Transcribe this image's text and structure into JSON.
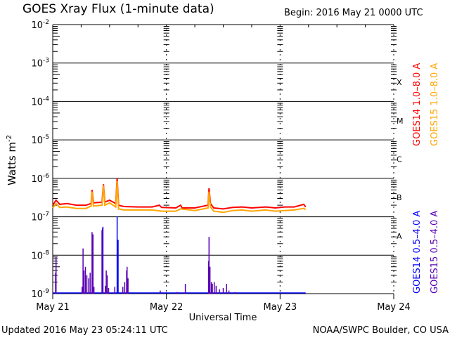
{
  "title": "GOES Xray Flux (1-minute data)",
  "begin": "Begin:  2016 May 21 0000 UTC",
  "updated": "Updated 2016 May 23 05:24:11 UTC",
  "credit": "NOAA/SWPC Boulder, CO USA",
  "chart_data": {
    "type": "line",
    "title": "GOES Xray Flux (1-minute data)",
    "xlabel": "Universal Time",
    "ylabel": "Watts m",
    "ylabel_sup": "-2",
    "yscale": "log",
    "ylim": [
      1e-09,
      0.01
    ],
    "xlim_hours": [
      0,
      72
    ],
    "x_ticks": [
      {
        "hour": 0,
        "label": "May 21"
      },
      {
        "hour": 24,
        "label": "May 22"
      },
      {
        "hour": 48,
        "label": "May 23"
      },
      {
        "hour": 72,
        "label": "May 24"
      }
    ],
    "y_ticks": [
      {
        "exp": -2,
        "label": "10",
        "sup": "-2"
      },
      {
        "exp": -3,
        "label": "10",
        "sup": "-3"
      },
      {
        "exp": -4,
        "label": "10",
        "sup": "-4"
      },
      {
        "exp": -5,
        "label": "10",
        "sup": "-5"
      },
      {
        "exp": -6,
        "label": "10",
        "sup": "-6"
      },
      {
        "exp": -7,
        "label": "10",
        "sup": "-7"
      },
      {
        "exp": -8,
        "label": "10",
        "sup": "-8"
      },
      {
        "exp": -9,
        "label": "10",
        "sup": "-9"
      }
    ],
    "flare_classes": [
      {
        "label": "X",
        "exp": -3.5
      },
      {
        "label": "M",
        "exp": -4.5
      },
      {
        "label": "C",
        "exp": -5.5
      },
      {
        "label": "B",
        "exp": -6.5
      },
      {
        "label": "A",
        "exp": -7.5
      }
    ],
    "grid": true,
    "legend_position": "right",
    "series": [
      {
        "name": "GOES14 1.0–8.0 A",
        "color": "#ff0000",
        "style": "line",
        "points": [
          [
            0,
            2e-07
          ],
          [
            0.7,
            2.7e-07
          ],
          [
            1.5,
            2.1e-07
          ],
          [
            3,
            2.2e-07
          ],
          [
            5,
            2e-07
          ],
          [
            7,
            2e-07
          ],
          [
            8.1,
            2.2e-07
          ],
          [
            8.3,
            5e-07
          ],
          [
            8.6,
            2.3e-07
          ],
          [
            10.4,
            2.4e-07
          ],
          [
            10.7,
            7e-07
          ],
          [
            11,
            2.4e-07
          ],
          [
            12,
            2.7e-07
          ],
          [
            13.3,
            2.2e-07
          ],
          [
            13.6,
            1e-06
          ],
          [
            13.9,
            2e-07
          ],
          [
            15,
            1.85e-07
          ],
          [
            18,
            1.8e-07
          ],
          [
            21,
            1.8e-07
          ],
          [
            22.5,
            2e-07
          ],
          [
            23,
            1.75e-07
          ],
          [
            26,
            1.7e-07
          ],
          [
            27,
            2e-07
          ],
          [
            27.3,
            1.7e-07
          ],
          [
            30,
            1.7e-07
          ],
          [
            32.8,
            2e-07
          ],
          [
            33,
            5.5e-07
          ],
          [
            33.3,
            2.2e-07
          ],
          [
            34,
            1.7e-07
          ],
          [
            36,
            1.6e-07
          ],
          [
            38,
            1.75e-07
          ],
          [
            40,
            1.8e-07
          ],
          [
            42,
            1.7e-07
          ],
          [
            45,
            1.8e-07
          ],
          [
            47,
            1.7e-07
          ],
          [
            49,
            1.8e-07
          ],
          [
            51,
            1.8e-07
          ],
          [
            53,
            2.1e-07
          ],
          [
            53.4,
            1.8e-07
          ]
        ]
      },
      {
        "name": "GOES15 1.0–8.0 A",
        "color": "#ffa500",
        "style": "line",
        "points": [
          [
            0,
            1.7e-07
          ],
          [
            0.7,
            2.2e-07
          ],
          [
            1.5,
            1.75e-07
          ],
          [
            3,
            1.8e-07
          ],
          [
            5,
            1.65e-07
          ],
          [
            7,
            1.65e-07
          ],
          [
            8.1,
            1.9e-07
          ],
          [
            8.3,
            4.5e-07
          ],
          [
            8.6,
            1.9e-07
          ],
          [
            10.4,
            2e-07
          ],
          [
            10.7,
            6.5e-07
          ],
          [
            11,
            2e-07
          ],
          [
            12,
            2.3e-07
          ],
          [
            13.3,
            1.8e-07
          ],
          [
            13.6,
            8.5e-07
          ],
          [
            13.9,
            1.6e-07
          ],
          [
            15,
            1.5e-07
          ],
          [
            18,
            1.5e-07
          ],
          [
            21,
            1.5e-07
          ],
          [
            23,
            1.4e-07
          ],
          [
            26,
            1.4e-07
          ],
          [
            27,
            1.6e-07
          ],
          [
            30,
            1.45e-07
          ],
          [
            32.8,
            1.7e-07
          ],
          [
            33,
            4.5e-07
          ],
          [
            33.3,
            1.8e-07
          ],
          [
            34,
            1.4e-07
          ],
          [
            36,
            1.3e-07
          ],
          [
            38,
            1.45e-07
          ],
          [
            40,
            1.5e-07
          ],
          [
            42,
            1.4e-07
          ],
          [
            45,
            1.5e-07
          ],
          [
            47,
            1.4e-07
          ],
          [
            49,
            1.45e-07
          ],
          [
            51,
            1.5e-07
          ],
          [
            53,
            1.65e-07
          ],
          [
            53.4,
            1.55e-07
          ]
        ]
      },
      {
        "name": "GOES14 0.5–4.0 A",
        "color": "#0000ff",
        "style": "spikes",
        "points": [
          [
            10.6,
            5.5e-08
          ],
          [
            13.6,
            1e-07
          ],
          [
            13.8,
            2.5e-08
          ],
          [
            33,
            1.8e-09
          ]
        ]
      },
      {
        "name": "GOES15 0.5–4.0 A",
        "color": "#5a00b4",
        "style": "spikes",
        "points": [
          [
            0.6,
            3.5e-09
          ],
          [
            0.7,
            9e-09
          ],
          [
            6.2,
            1.5e-09
          ],
          [
            6.4,
            1.5e-08
          ],
          [
            6.6,
            4e-09
          ],
          [
            6.9,
            5e-09
          ],
          [
            7.2,
            3e-09
          ],
          [
            7.6,
            2.5e-09
          ],
          [
            7.9,
            3.5e-09
          ],
          [
            8.3,
            4e-08
          ],
          [
            8.5,
            3.5e-08
          ],
          [
            8.7,
            1.5e-09
          ],
          [
            10.4,
            4.5e-08
          ],
          [
            10.5,
            5e-08
          ],
          [
            11.1,
            1.6e-09
          ],
          [
            11.3,
            4e-09
          ],
          [
            11.5,
            3e-09
          ],
          [
            11.8,
            1.4e-09
          ],
          [
            13.1,
            1.5e-09
          ],
          [
            14.8,
            1.5e-09
          ],
          [
            15.2,
            2e-09
          ],
          [
            15.6,
            4e-09
          ],
          [
            15.7,
            5e-09
          ],
          [
            15.9,
            2.5e-09
          ],
          [
            22.7,
            1.2e-09
          ],
          [
            26.3,
            1.1e-09
          ],
          [
            28,
            1.8e-09
          ],
          [
            32.9,
            7e-09
          ],
          [
            33,
            3e-08
          ],
          [
            33.2,
            5e-09
          ],
          [
            33.5,
            2e-09
          ],
          [
            33.7,
            1.8e-09
          ],
          [
            34.1,
            2e-09
          ],
          [
            34.5,
            1.6e-09
          ],
          [
            35.2,
            1.3e-09
          ],
          [
            36,
            1.4e-09
          ],
          [
            36.7,
            1.8e-09
          ],
          [
            37.2,
            1.2e-09
          ],
          [
            38.5,
            1.1e-09
          ]
        ]
      }
    ]
  }
}
